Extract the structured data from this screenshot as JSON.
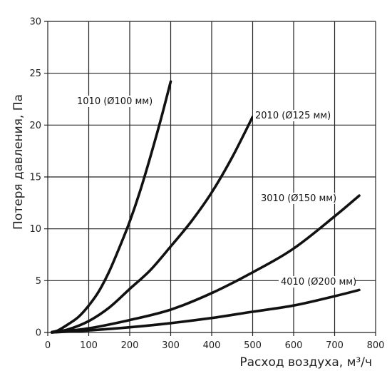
{
  "chart_data": {
    "type": "line",
    "xlabel": "Расход воздуха, м³/ч",
    "ylabel": "Потеря давления, Па",
    "xlim": [
      0,
      800
    ],
    "ylim": [
      0,
      30
    ],
    "xticks": [
      "0",
      "100",
      "200",
      "300",
      "400",
      "500",
      "600",
      "700",
      "800"
    ],
    "yticks": [
      "0",
      "5",
      "10",
      "15",
      "20",
      "25",
      "30"
    ],
    "grid": true,
    "legend": "inline labels next to curves",
    "series": [
      {
        "name": "1010 (Ø100 мм)",
        "x": [
          10,
          25,
          50,
          75,
          100,
          125,
          150,
          175,
          200,
          225,
          250,
          275,
          300
        ],
        "y": [
          0.05,
          0.2,
          0.8,
          1.5,
          2.6,
          4.0,
          5.9,
          8.2,
          10.7,
          13.6,
          16.9,
          20.4,
          24.2
        ]
      },
      {
        "name": "2010 (Ø125 мм)",
        "x": [
          10,
          50,
          100,
          150,
          200,
          250,
          300,
          350,
          400,
          450,
          500
        ],
        "y": [
          0.0,
          0.3,
          1.1,
          2.4,
          4.2,
          6.0,
          8.3,
          10.7,
          13.5,
          16.9,
          20.8
        ]
      },
      {
        "name": "3010 (Ø150 мм)",
        "x": [
          10,
          100,
          200,
          300,
          400,
          500,
          600,
          700,
          760
        ],
        "y": [
          0.0,
          0.4,
          1.2,
          2.2,
          3.8,
          5.8,
          8.1,
          11.2,
          13.2
        ]
      },
      {
        "name": "4010 (Ø200 мм)",
        "x": [
          10,
          100,
          200,
          300,
          400,
          500,
          600,
          700,
          760
        ],
        "y": [
          0.0,
          0.2,
          0.5,
          0.9,
          1.4,
          2.0,
          2.6,
          3.5,
          4.1
        ]
      }
    ]
  }
}
